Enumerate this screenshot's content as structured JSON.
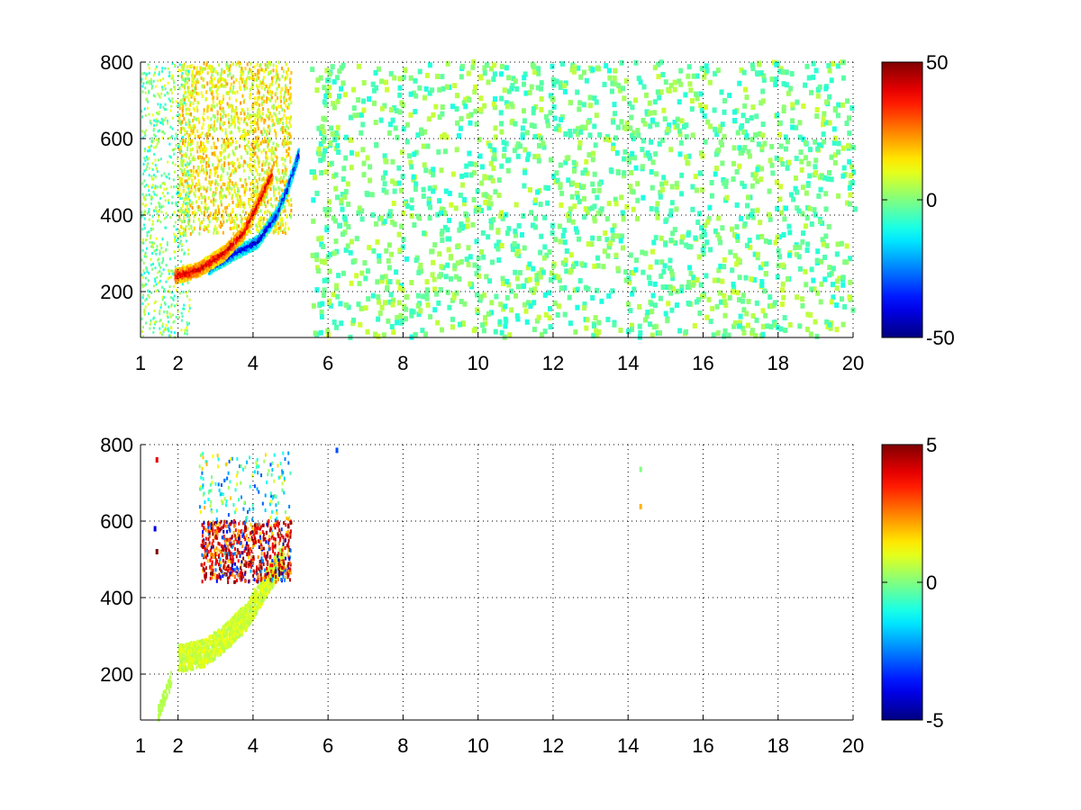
{
  "chart_data": [
    {
      "type": "heatmap",
      "title": "",
      "xlabel": "",
      "ylabel": "",
      "xlim": [
        1,
        20
      ],
      "ylim": [
        80,
        800
      ],
      "x_ticks": [
        1,
        2,
        4,
        6,
        8,
        10,
        12,
        14,
        16,
        18,
        20
      ],
      "y_ticks": [
        200,
        400,
        600,
        800
      ],
      "grid": true,
      "colormap": "jet",
      "colorbar": {
        "min": -50,
        "max": 50,
        "ticks": [
          50,
          0,
          -50
        ]
      },
      "features": {
        "positive_arc": {
          "sign": "positive",
          "points": [
            [
              1.9,
              240
            ],
            [
              2.5,
              255
            ],
            [
              3.2,
              300
            ],
            [
              3.7,
              350
            ],
            [
              4.1,
              430
            ],
            [
              4.5,
              510
            ]
          ]
        },
        "negative_arc": {
          "sign": "negative",
          "points": [
            [
              2.8,
              260
            ],
            [
              3.5,
              300
            ],
            [
              4.1,
              330
            ],
            [
              4.6,
              400
            ],
            [
              4.9,
              470
            ],
            [
              5.2,
              560
            ]
          ]
        },
        "warm_cloud": {
          "x_range": [
            2.0,
            5.0
          ],
          "y_range": [
            350,
            800
          ],
          "level": 12
        },
        "sparse_noise": {
          "x_range": [
            5.5,
            20
          ],
          "y_range": [
            80,
            800
          ],
          "level_range": [
            -10,
            8
          ]
        }
      }
    },
    {
      "type": "heatmap",
      "title": "",
      "xlabel": "",
      "ylabel": "",
      "xlim": [
        1,
        20
      ],
      "ylim": [
        80,
        800
      ],
      "x_ticks": [
        1,
        2,
        4,
        6,
        8,
        10,
        12,
        14,
        16,
        18,
        20
      ],
      "y_ticks": [
        200,
        400,
        600,
        800
      ],
      "grid": true,
      "colormap": "jet",
      "colorbar": {
        "min": -5,
        "max": 5,
        "ticks": [
          5,
          0,
          -5
        ]
      },
      "features": {
        "low_level_arc": {
          "points": [
            [
              2.0,
              240
            ],
            [
              2.7,
              255
            ],
            [
              3.3,
              300
            ],
            [
              3.8,
              350
            ],
            [
              4.3,
              430
            ],
            [
              4.8,
              510
            ]
          ],
          "level": 0.8
        },
        "mixed_band": {
          "x_range": [
            2.6,
            5.0
          ],
          "y_range": [
            440,
            600
          ],
          "level_range": [
            -5,
            5
          ]
        },
        "scattered_cells": {
          "x_range": [
            2.5,
            5.0
          ],
          "y_range": [
            600,
            780
          ],
          "level_range": [
            -3,
            2
          ]
        },
        "isolated_marks": [
          [
            1.4,
            760,
            4
          ],
          [
            1.35,
            580,
            -4
          ],
          [
            1.4,
            520,
            5
          ],
          [
            6.2,
            785,
            -3
          ],
          [
            14.3,
            735,
            0
          ],
          [
            14.3,
            638,
            2
          ]
        ]
      }
    }
  ]
}
